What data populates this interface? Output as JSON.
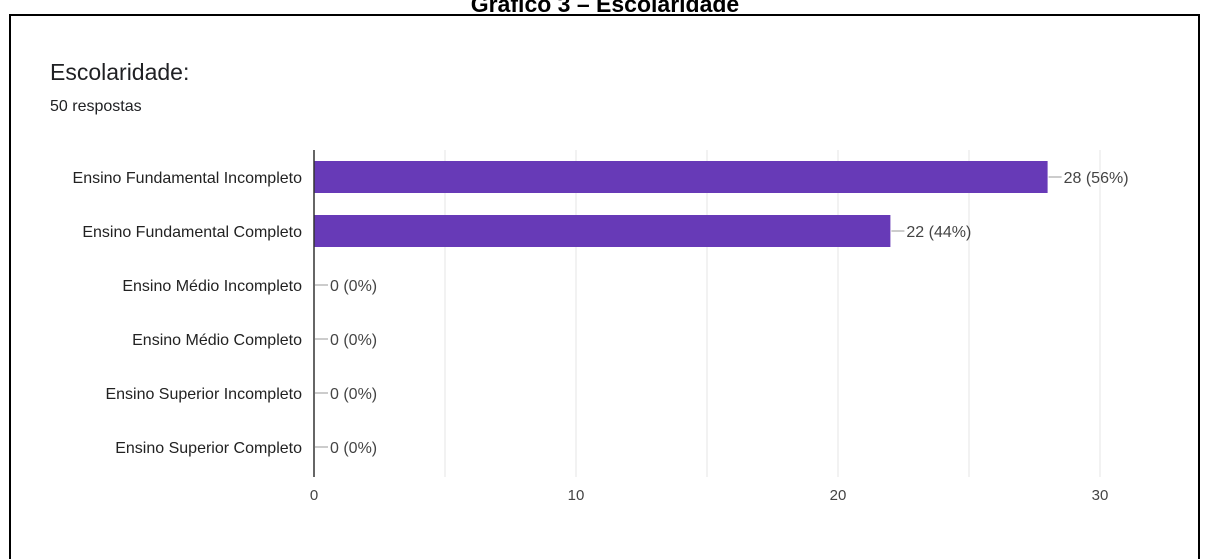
{
  "caption": "Gráfico 3 – Escolaridade",
  "question": {
    "title": "Escolaridade:",
    "responses": "50 respostas"
  },
  "colors": {
    "bar": "#673ab7",
    "grid": "#e6e6e6",
    "axis": "#333333",
    "leader": "#999999"
  },
  "chart_data": {
    "type": "bar",
    "orientation": "horizontal",
    "categories": [
      "Ensino Fundamental Incompleto",
      "Ensino Fundamental Completo",
      "Ensino Médio Incompleto",
      "Ensino Médio Completo",
      "Ensino Superior Incompleto",
      "Ensino Superior Completo"
    ],
    "values": [
      28,
      22,
      0,
      0,
      0,
      0
    ],
    "data_labels": [
      "28 (56%)",
      "22 (44%)",
      "0 (0%)",
      "0 (0%)",
      "0 (0%)",
      "0 (0%)"
    ],
    "xlim": [
      0,
      30
    ],
    "xticks": [
      0,
      10,
      20,
      30
    ],
    "grid": true
  }
}
